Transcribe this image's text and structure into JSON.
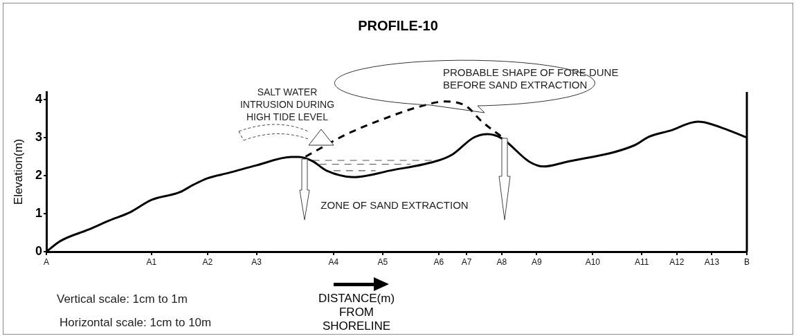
{
  "chart_data": {
    "type": "line",
    "title": "PROFILE-10",
    "xlabel": "DISTANCE(m) FROM SHORELINE",
    "ylabel": "Elevation(m)",
    "categories": [
      "A",
      null,
      null,
      null,
      null,
      null,
      null,
      null,
      null,
      null,
      null,
      null,
      null,
      null,
      null,
      "A1",
      null,
      null,
      null,
      null,
      null,
      null,
      null,
      "A2",
      null,
      null,
      null,
      null,
      null,
      null,
      "A3",
      null,
      null,
      null,
      null,
      null,
      null,
      null,
      null,
      null,
      null,
      "A4",
      null,
      null,
      null,
      null,
      null,
      null,
      "A5",
      null,
      null,
      null,
      null,
      null,
      null,
      null,
      "A6",
      null,
      null,
      null,
      "A7",
      null,
      null,
      null,
      null,
      "A8",
      null,
      null,
      null,
      null,
      "A9",
      null,
      null,
      null,
      null,
      null,
      null,
      null,
      "A10",
      null,
      null,
      null,
      null,
      null,
      null,
      "A11",
      null,
      null,
      null,
      null,
      "A12",
      null,
      null,
      null,
      null,
      "A13",
      null,
      null,
      null,
      null,
      "B"
    ],
    "ylim": [
      0,
      4.2
    ],
    "yticks": [
      0,
      1,
      2,
      3,
      4
    ],
    "grid": false,
    "legend": false,
    "marker": "none",
    "series": [
      {
        "color": "#000000",
        "line_style": "solid",
        "values": [
          0,
          null,
          0.28,
          null,
          null,
          null,
          0.58,
          null,
          null,
          0.82,
          null,
          null,
          1.04,
          null,
          null,
          1.36,
          null,
          null,
          null,
          1.56,
          null,
          1.76,
          null,
          1.93,
          null,
          null,
          2.07,
          null,
          null,
          null,
          2.27,
          null,
          null,
          null,
          null,
          2.49,
          2.49,
          null,
          2.38,
          null,
          2.13,
          null,
          null,
          null,
          1.96,
          null,
          null,
          null,
          null,
          2.13,
          null,
          null,
          null,
          null,
          null,
          null,
          2.4,
          null,
          2.56,
          null,
          null,
          3.0,
          null,
          3.09,
          null,
          2.98,
          null,
          null,
          null,
          2.36,
          null,
          2.24,
          null,
          null,
          2.35,
          null,
          null,
          null,
          null,
          null,
          null,
          null,
          null,
          null,
          2.8,
          null,
          3.02,
          null,
          null,
          3.18,
          null,
          null,
          null,
          3.42,
          3.4,
          null,
          null,
          3.22,
          null,
          null,
          3.0
        ]
      },
      {
        "color": "#000000",
        "line_style": "dashed",
        "values": [
          null,
          null,
          null,
          null,
          null,
          null,
          null,
          null,
          null,
          null,
          null,
          null,
          null,
          null,
          null,
          null,
          null,
          null,
          null,
          null,
          null,
          null,
          null,
          null,
          null,
          null,
          null,
          null,
          null,
          null,
          null,
          null,
          null,
          null,
          null,
          null,
          null,
          2.5,
          null,
          null,
          null,
          null,
          null,
          3.1,
          null,
          null,
          null,
          null,
          null,
          3.55,
          null,
          null,
          null,
          3.8,
          null,
          null,
          null,
          3.95,
          null,
          null,
          3.82,
          null,
          3.45,
          null,
          null,
          3.02,
          null,
          null,
          null,
          null,
          null,
          null,
          null,
          null,
          null,
          null,
          null,
          null,
          null,
          null,
          null,
          null,
          null,
          null,
          null,
          null,
          null,
          null,
          null,
          null,
          null,
          null,
          null,
          null,
          null,
          null,
          null,
          null,
          null,
          null,
          null
        ]
      },
      {
        "color": "#555555",
        "line_style": "dashed",
        "values": [
          null,
          null,
          null,
          null,
          null,
          null,
          null,
          null,
          null,
          null,
          null,
          null,
          null,
          null,
          null,
          null,
          null,
          null,
          null,
          null,
          null,
          null,
          null,
          null,
          null,
          null,
          null,
          null,
          null,
          null,
          null,
          null,
          null,
          null,
          null,
          null,
          null,
          null,
          2.4,
          null,
          null,
          null,
          null,
          null,
          null,
          null,
          null,
          null,
          null,
          null,
          null,
          null,
          null,
          null,
          null,
          null,
          2.4,
          null,
          null,
          null,
          null,
          null,
          null,
          null,
          null,
          null,
          null,
          null,
          null,
          null,
          null,
          null,
          null,
          null,
          null,
          null,
          null,
          null,
          null,
          null,
          null,
          null,
          null,
          null,
          null,
          null,
          null,
          null,
          null,
          null,
          null,
          null,
          null,
          null,
          null,
          null,
          null,
          null,
          null,
          null,
          null
        ]
      },
      {
        "color": "#555555",
        "line_style": "dashed",
        "values": [
          null,
          null,
          null,
          null,
          null,
          null,
          null,
          null,
          null,
          null,
          null,
          null,
          null,
          null,
          null,
          null,
          null,
          null,
          null,
          null,
          null,
          null,
          null,
          null,
          null,
          null,
          null,
          null,
          null,
          null,
          null,
          null,
          null,
          null,
          null,
          null,
          null,
          null,
          null,
          2.3,
          null,
          null,
          null,
          null,
          null,
          null,
          null,
          null,
          null,
          null,
          null,
          null,
          2.3,
          null,
          null,
          null,
          null,
          null,
          null,
          null,
          null,
          null,
          null,
          null,
          null,
          null,
          null,
          null,
          null,
          null,
          null,
          null,
          null,
          null,
          null,
          null,
          null,
          null,
          null,
          null,
          null,
          null,
          null,
          null,
          null,
          null,
          null,
          null,
          null,
          null,
          null,
          null,
          null,
          null,
          null,
          null,
          null,
          null,
          null,
          null,
          null
        ]
      },
      {
        "color": "#555555",
        "line_style": "dashed",
        "values": [
          null,
          null,
          null,
          null,
          null,
          null,
          null,
          null,
          null,
          null,
          null,
          null,
          null,
          null,
          null,
          null,
          null,
          null,
          null,
          null,
          null,
          null,
          null,
          null,
          null,
          null,
          null,
          null,
          null,
          null,
          null,
          null,
          null,
          null,
          null,
          null,
          null,
          null,
          null,
          null,
          null,
          2.13,
          null,
          null,
          null,
          null,
          null,
          2.13,
          null,
          null,
          null,
          null,
          null,
          null,
          null,
          null,
          null,
          null,
          null,
          null,
          null,
          null,
          null,
          null,
          null,
          null,
          null,
          null,
          null,
          null,
          null,
          null,
          null,
          null,
          null,
          null,
          null,
          null,
          null,
          null,
          null,
          null,
          null,
          null,
          null,
          null,
          null,
          null,
          null,
          null,
          null,
          null,
          null,
          null,
          null,
          null,
          null,
          null,
          null,
          null,
          null
        ]
      }
    ],
    "ref_lines": [
      {
        "axis": "x",
        "value": "B",
        "color": "#000000"
      }
    ],
    "annotations": [
      "SALT WATER INTRUSION DURING HIGH TIDE LEVEL",
      "PROBABLE SHAPE OF FORE DUNE BEFORE SAND EXTRACTION",
      "ZONE OF SAND EXTRACTION",
      "Vertical scale:  1cm to 1m",
      "Horizontal scale: 1cm to 10m"
    ]
  }
}
